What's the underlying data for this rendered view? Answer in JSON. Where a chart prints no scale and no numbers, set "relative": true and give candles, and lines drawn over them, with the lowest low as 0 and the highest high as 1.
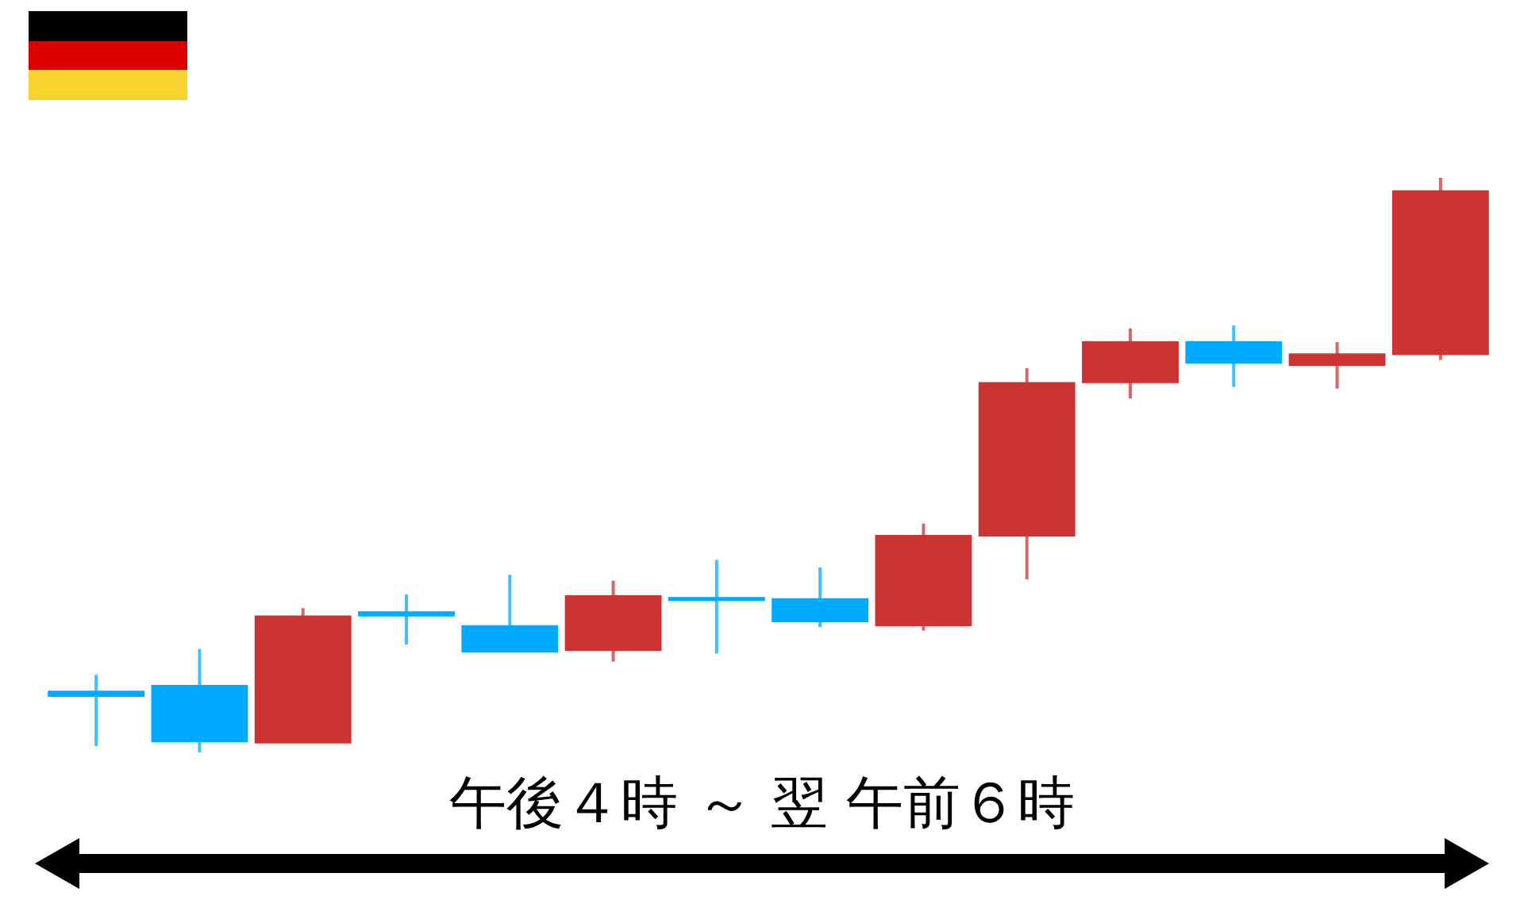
{
  "chart_data": {
    "type": "candlestick",
    "relative": true,
    "categories": [
      null,
      null,
      null,
      null,
      null,
      null,
      null,
      null,
      null,
      null,
      null,
      null,
      null,
      null
    ],
    "ohlc": [
      [
        0.106,
        0.135,
        0.011,
        0.098
      ],
      [
        0.116,
        0.18,
        0,
        0.019
      ],
      [
        0.017,
        0.251,
        0.017,
        0.237
      ],
      [
        0.244,
        0.275,
        0.188,
        0.238
      ],
      [
        0.22,
        0.309,
        0.175,
        0.175
      ],
      [
        0.178,
        0.299,
        0.158,
        0.272
      ],
      [
        0.269,
        0.335,
        0.172,
        0.265
      ],
      [
        0.267,
        0.322,
        0.218,
        0.228
      ],
      [
        0.221,
        0.398,
        0.212,
        0.377
      ],
      [
        0.377,
        0.669,
        0.301,
        0.643
      ],
      [
        0.644,
        0.738,
        0.616,
        0.714
      ],
      [
        0.714,
        0.743,
        0.636,
        0.678
      ],
      [
        0.674,
        0.714,
        0.633,
        0.693
      ],
      [
        0.693,
        1,
        0.683,
        0.977
      ]
    ],
    "colors": [
      "#00aaff",
      "#00aaff",
      "#cc3333",
      "#00aaff",
      "#00aaff",
      "#cc3333",
      "#00aaff",
      "#00aaff",
      "#cc3333",
      "#cc3333",
      "#cc3333",
      "#00aaff",
      "#cc3333",
      "#cc3333"
    ],
    "annotations": [
      "午後４時 ～ 翌 午前６時"
    ]
  }
}
